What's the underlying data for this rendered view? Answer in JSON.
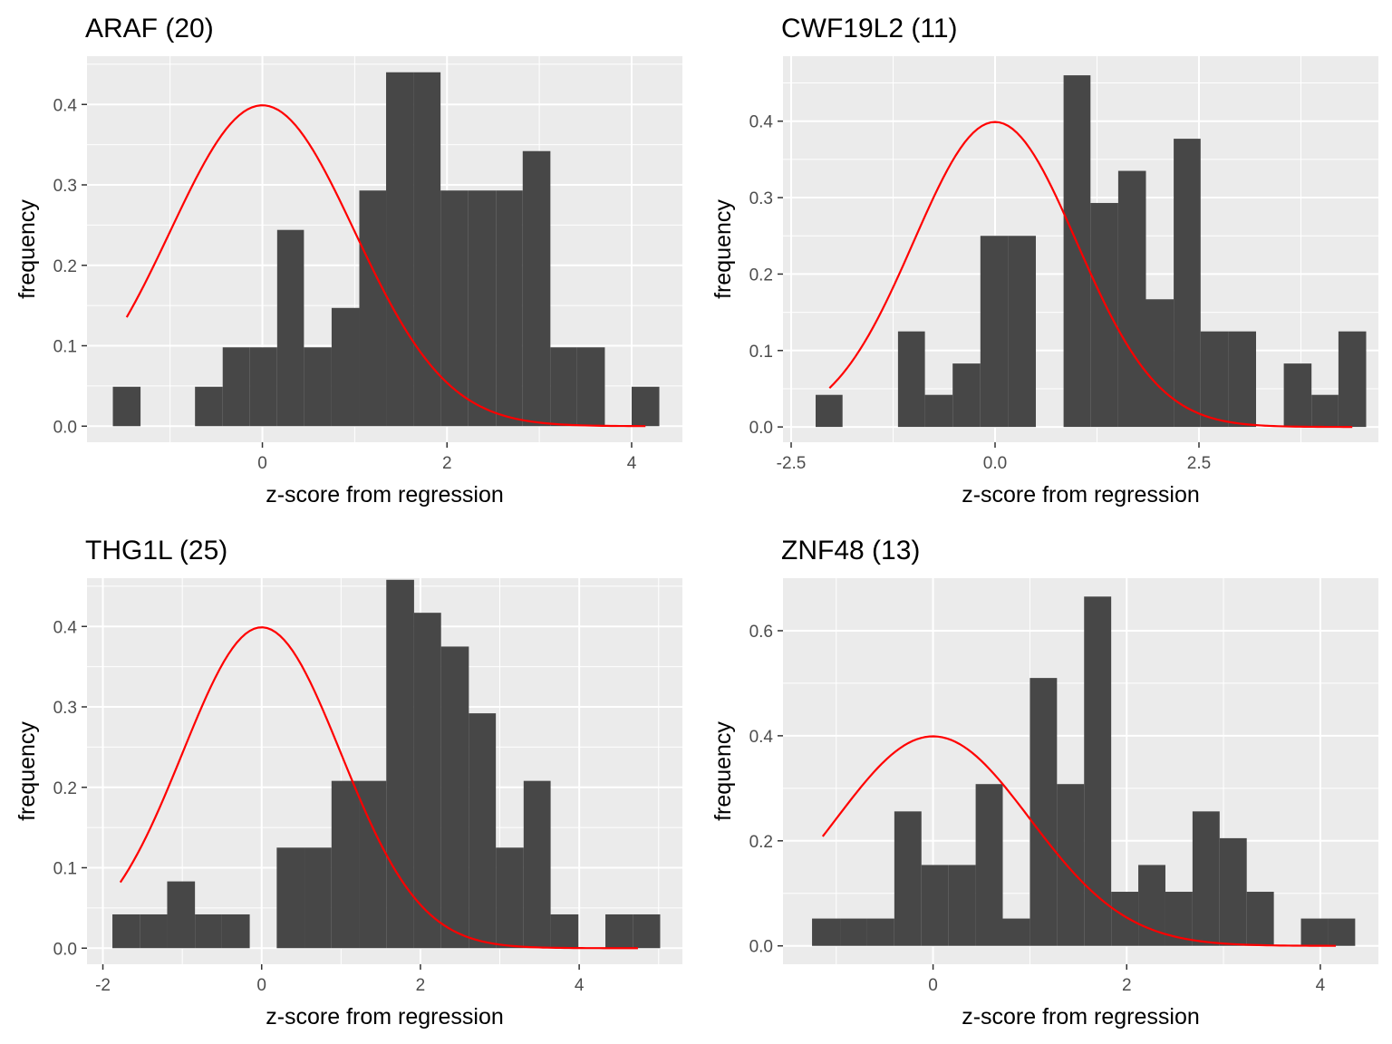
{
  "colors": {
    "panel_background": "#ebebeb",
    "grid": "#ffffff",
    "bar_fill": "#474747",
    "curve": "#ff0000"
  },
  "chart_data": [
    {
      "type": "bar",
      "subtype": "histogram-with-normal-density",
      "title": "ARAF (20)",
      "xlabel": "z-score from regression",
      "ylabel": "frequency",
      "xlim": [
        -1.9,
        4.55
      ],
      "ylim": [
        -0.02,
        0.46
      ],
      "xticks": [
        0,
        2,
        4
      ],
      "xtick_labels": [
        "0",
        "2",
        "4"
      ],
      "yticks": [
        0,
        0.1,
        0.2,
        0.3,
        0.4
      ],
      "ytick_labels": [
        "0.0",
        "0.1",
        "0.2",
        "0.3",
        "0.4"
      ],
      "grid": true,
      "bins": [
        {
          "x0": -1.62,
          "x1": -1.32,
          "y": 0.049
        },
        {
          "x0": -0.73,
          "x1": -0.43,
          "y": 0.049
        },
        {
          "x0": -0.43,
          "x1": -0.14,
          "y": 0.098
        },
        {
          "x0": -0.14,
          "x1": 0.16,
          "y": 0.098
        },
        {
          "x0": 0.16,
          "x1": 0.45,
          "y": 0.244
        },
        {
          "x0": 0.45,
          "x1": 0.75,
          "y": 0.098
        },
        {
          "x0": 0.75,
          "x1": 1.05,
          "y": 0.147
        },
        {
          "x0": 1.05,
          "x1": 1.34,
          "y": 0.293
        },
        {
          "x0": 1.34,
          "x1": 1.64,
          "y": 0.44
        },
        {
          "x0": 1.64,
          "x1": 1.93,
          "y": 0.44
        },
        {
          "x0": 1.93,
          "x1": 2.23,
          "y": 0.293
        },
        {
          "x0": 2.23,
          "x1": 2.53,
          "y": 0.293
        },
        {
          "x0": 2.53,
          "x1": 2.82,
          "y": 0.293
        },
        {
          "x0": 2.82,
          "x1": 3.12,
          "y": 0.342
        },
        {
          "x0": 3.12,
          "x1": 3.41,
          "y": 0.098
        },
        {
          "x0": 3.41,
          "x1": 3.71,
          "y": 0.098
        },
        {
          "x0": 4.0,
          "x1": 4.3,
          "y": 0.049
        }
      ],
      "normal_curve": {
        "mean": 0,
        "sd": 1,
        "x_range": [
          -1.47,
          4.15
        ]
      }
    },
    {
      "type": "bar",
      "subtype": "histogram-with-normal-density",
      "title": "CWF19L2 (11)",
      "xlabel": "z-score from regression",
      "ylabel": "frequency",
      "xlim": [
        -2.6,
        4.7
      ],
      "ylim": [
        -0.02,
        0.485
      ],
      "xticks": [
        -2.5,
        0,
        2.5
      ],
      "xtick_labels": [
        "-2.5",
        "0.0",
        "2.5"
      ],
      "yticks": [
        0,
        0.1,
        0.2,
        0.3,
        0.4
      ],
      "ytick_labels": [
        "0.0",
        "0.1",
        "0.2",
        "0.3",
        "0.4"
      ],
      "grid": true,
      "bins": [
        {
          "x0": -2.2,
          "x1": -1.87,
          "y": 0.042
        },
        {
          "x0": -1.19,
          "x1": -0.86,
          "y": 0.125
        },
        {
          "x0": -0.86,
          "x1": -0.52,
          "y": 0.042
        },
        {
          "x0": -0.52,
          "x1": -0.18,
          "y": 0.083
        },
        {
          "x0": -0.18,
          "x1": 0.16,
          "y": 0.25
        },
        {
          "x0": 0.16,
          "x1": 0.5,
          "y": 0.25
        },
        {
          "x0": 0.84,
          "x1": 1.17,
          "y": 0.46
        },
        {
          "x0": 1.17,
          "x1": 1.51,
          "y": 0.293
        },
        {
          "x0": 1.51,
          "x1": 1.85,
          "y": 0.335
        },
        {
          "x0": 1.85,
          "x1": 2.19,
          "y": 0.167
        },
        {
          "x0": 2.19,
          "x1": 2.52,
          "y": 0.377
        },
        {
          "x0": 2.52,
          "x1": 2.86,
          "y": 0.125
        },
        {
          "x0": 2.86,
          "x1": 3.2,
          "y": 0.125
        },
        {
          "x0": 3.54,
          "x1": 3.88,
          "y": 0.083
        },
        {
          "x0": 3.88,
          "x1": 4.21,
          "y": 0.042
        },
        {
          "x0": 4.21,
          "x1": 4.55,
          "y": 0.125
        }
      ],
      "normal_curve": {
        "mean": 0,
        "sd": 1,
        "x_range": [
          -2.03,
          4.38
        ]
      }
    },
    {
      "type": "bar",
      "subtype": "histogram-with-normal-density",
      "title": "THG1L (25)",
      "xlabel": "z-score from regression",
      "ylabel": "frequency",
      "xlim": [
        -2.2,
        5.3
      ],
      "ylim": [
        -0.02,
        0.46
      ],
      "xticks": [
        -2,
        0,
        2,
        4
      ],
      "xtick_labels": [
        "-2",
        "0",
        "2",
        "4"
      ],
      "yticks": [
        0,
        0.1,
        0.2,
        0.3,
        0.4
      ],
      "ytick_labels": [
        "0.0",
        "0.1",
        "0.2",
        "0.3",
        "0.4"
      ],
      "grid": true,
      "bins": [
        {
          "x0": -1.88,
          "x1": -1.53,
          "y": 0.042
        },
        {
          "x0": -1.53,
          "x1": -1.19,
          "y": 0.042
        },
        {
          "x0": -1.19,
          "x1": -0.84,
          "y": 0.083
        },
        {
          "x0": -0.84,
          "x1": -0.5,
          "y": 0.042
        },
        {
          "x0": -0.5,
          "x1": -0.15,
          "y": 0.042
        },
        {
          "x0": 0.19,
          "x1": 0.54,
          "y": 0.125
        },
        {
          "x0": 0.54,
          "x1": 0.88,
          "y": 0.125
        },
        {
          "x0": 0.88,
          "x1": 1.23,
          "y": 0.208
        },
        {
          "x0": 1.23,
          "x1": 1.57,
          "y": 0.208
        },
        {
          "x0": 1.57,
          "x1": 1.92,
          "y": 0.458
        },
        {
          "x0": 1.92,
          "x1": 2.26,
          "y": 0.417
        },
        {
          "x0": 2.26,
          "x1": 2.61,
          "y": 0.375
        },
        {
          "x0": 2.61,
          "x1": 2.95,
          "y": 0.292
        },
        {
          "x0": 2.95,
          "x1": 3.3,
          "y": 0.125
        },
        {
          "x0": 3.3,
          "x1": 3.64,
          "y": 0.208
        },
        {
          "x0": 3.64,
          "x1": 3.99,
          "y": 0.042
        },
        {
          "x0": 4.33,
          "x1": 4.68,
          "y": 0.042
        },
        {
          "x0": 4.68,
          "x1": 5.02,
          "y": 0.042
        }
      ],
      "normal_curve": {
        "mean": 0,
        "sd": 1,
        "x_range": [
          -1.78,
          4.74
        ]
      }
    },
    {
      "type": "bar",
      "subtype": "histogram-with-normal-density",
      "title": "ZNF48 (13)",
      "xlabel": "z-score from regression",
      "ylabel": "frequency",
      "xlim": [
        -1.55,
        4.6
      ],
      "ylim": [
        -0.035,
        0.7
      ],
      "xticks": [
        0,
        2,
        4
      ],
      "xtick_labels": [
        "0",
        "2",
        "4"
      ],
      "yticks": [
        0,
        0.2,
        0.4,
        0.6
      ],
      "ytick_labels": [
        "0.0",
        "0.2",
        "0.4",
        "0.6"
      ],
      "grid": true,
      "bins": [
        {
          "x0": -1.25,
          "x1": -0.96,
          "y": 0.052
        },
        {
          "x0": -0.96,
          "x1": -0.68,
          "y": 0.052
        },
        {
          "x0": -0.68,
          "x1": -0.4,
          "y": 0.052
        },
        {
          "x0": -0.4,
          "x1": -0.12,
          "y": 0.256
        },
        {
          "x0": -0.12,
          "x1": 0.16,
          "y": 0.154
        },
        {
          "x0": 0.16,
          "x1": 0.44,
          "y": 0.154
        },
        {
          "x0": 0.44,
          "x1": 0.72,
          "y": 0.308
        },
        {
          "x0": 0.72,
          "x1": 1.0,
          "y": 0.052
        },
        {
          "x0": 1.0,
          "x1": 1.28,
          "y": 0.51
        },
        {
          "x0": 1.28,
          "x1": 1.56,
          "y": 0.308
        },
        {
          "x0": 1.56,
          "x1": 1.84,
          "y": 0.665
        },
        {
          "x0": 1.84,
          "x1": 2.12,
          "y": 0.103
        },
        {
          "x0": 2.12,
          "x1": 2.4,
          "y": 0.154
        },
        {
          "x0": 2.4,
          "x1": 2.68,
          "y": 0.103
        },
        {
          "x0": 2.68,
          "x1": 2.96,
          "y": 0.256
        },
        {
          "x0": 2.96,
          "x1": 3.24,
          "y": 0.205
        },
        {
          "x0": 3.24,
          "x1": 3.52,
          "y": 0.103
        },
        {
          "x0": 3.8,
          "x1": 4.08,
          "y": 0.052
        },
        {
          "x0": 4.08,
          "x1": 4.36,
          "y": 0.052
        }
      ],
      "normal_curve": {
        "mean": 0,
        "sd": 1,
        "x_range": [
          -1.14,
          4.16
        ]
      }
    }
  ]
}
